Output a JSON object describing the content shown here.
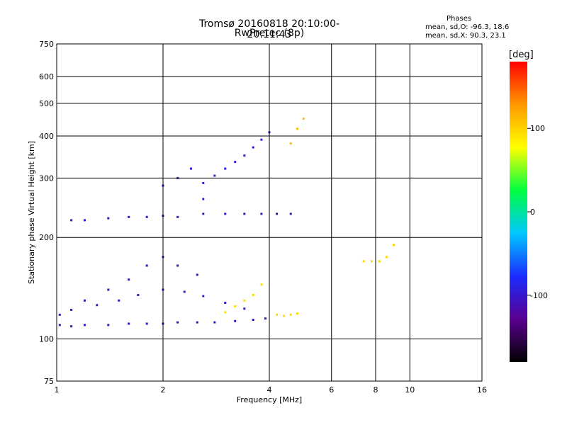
{
  "chart_data": {
    "type": "scatter",
    "title": "Tromsø 20160818 20:10:00-20:11:43",
    "subtitle": "RwPretec (8p)",
    "xlabel": "Frequency [MHz]",
    "ylabel": "Stationary phase Virtual Height [km]",
    "x_scale": "log",
    "y_scale": "log",
    "xlim": [
      1,
      16
    ],
    "ylim": [
      75,
      750
    ],
    "x_ticks": [
      "1",
      "2",
      "4",
      "6",
      "8",
      "10",
      "16"
    ],
    "y_ticks": [
      "75",
      "100",
      "200",
      "300",
      "400",
      "500",
      "600",
      "750"
    ],
    "grid": true,
    "phase_legend": {
      "heading": "Phases",
      "line_o": "mean, sd,O: -96.3, 18.6",
      "line_x": "mean, sd,X:  90.3, 23.1"
    },
    "colorbar": {
      "label": "[deg]",
      "range": [
        -180,
        180
      ],
      "ticks": [
        "100",
        "0",
        "-100"
      ],
      "colors": [
        "#000000",
        "#5a0090",
        "#1a2cff",
        "#00c8ff",
        "#00ff40",
        "#ffff00",
        "#ff9900",
        "#ff0000"
      ]
    },
    "series": [
      {
        "x": [
          1.02,
          1.1,
          1.2,
          1.4,
          1.6,
          1.8,
          2.0,
          2.2,
          2.5,
          2.8,
          3.2,
          3.6,
          3.9
        ],
        "y": [
          110,
          109,
          110,
          110,
          111,
          111,
          111,
          112,
          112,
          112,
          113,
          114,
          115
        ],
        "phase": -105
      },
      {
        "x": [
          1.02,
          1.1,
          1.3,
          1.5,
          1.7,
          2.0,
          2.3,
          2.6,
          3.0,
          3.4
        ],
        "y": [
          118,
          122,
          126,
          130,
          135,
          140,
          138,
          134,
          128,
          123
        ],
        "phase": -100
      },
      {
        "x": [
          1.2,
          1.4,
          1.6,
          1.8,
          2.0,
          2.2,
          2.5
        ],
        "y": [
          130,
          140,
          150,
          165,
          175,
          165,
          155
        ],
        "phase": -110
      },
      {
        "x": [
          3.0,
          3.2,
          3.4,
          3.6,
          3.8,
          4.2,
          4.4,
          4.6,
          4.8
        ],
        "y": [
          120,
          125,
          130,
          135,
          145,
          118,
          117,
          118,
          119
        ],
        "phase": 95
      },
      {
        "x": [
          1.1,
          1.2,
          1.4,
          1.6,
          1.8,
          2.0,
          2.2,
          2.6,
          3.0,
          3.4,
          3.8,
          4.2,
          4.6
        ],
        "y": [
          225,
          225,
          228,
          230,
          230,
          232,
          230,
          235,
          235,
          235,
          235,
          235,
          235
        ],
        "phase": -105
      },
      {
        "x": [
          2.6,
          2.8,
          3.0,
          3.2,
          3.4,
          3.6,
          3.8,
          4.0
        ],
        "y": [
          290,
          305,
          320,
          335,
          350,
          370,
          390,
          410
        ],
        "phase": -90
      },
      {
        "x": [
          2.0,
          2.2,
          2.4,
          2.6
        ],
        "y": [
          285,
          300,
          320,
          260
        ],
        "phase": -95
      },
      {
        "x": [
          4.6,
          4.8,
          5.0
        ],
        "y": [
          380,
          420,
          450
        ],
        "phase": 110
      },
      {
        "x": [
          7.4,
          7.8,
          8.2,
          8.6,
          9.0
        ],
        "y": [
          170,
          170,
          170,
          175,
          190
        ],
        "phase": 100
      }
    ]
  }
}
